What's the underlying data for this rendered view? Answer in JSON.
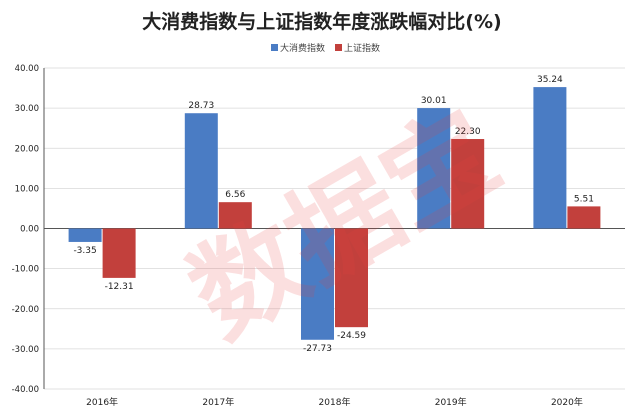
{
  "watermark": "数据宝",
  "chart_data": {
    "type": "bar",
    "title": "大消费指数与上证指数年度涨跌幅对比(%)",
    "categories": [
      "2016年",
      "2017年",
      "2018年",
      "2019年",
      "2020年"
    ],
    "series": [
      {
        "name": "大消费指数",
        "color": "#4a7cc4",
        "values": [
          -3.35,
          28.73,
          -27.73,
          30.01,
          35.24
        ]
      },
      {
        "name": "上证指数",
        "color": "#c2403c",
        "values": [
          -12.31,
          6.56,
          -24.59,
          22.3,
          5.51
        ]
      }
    ],
    "data_labels": [
      [
        "-3.35",
        "28.73",
        "-27.73",
        "30.01",
        "35.24"
      ],
      [
        "-12.31",
        "6.56",
        "-24.59",
        "22.30",
        "5.51"
      ]
    ],
    "yticks": [
      "40.00",
      "30.00",
      "20.00",
      "10.00",
      "0.00",
      "-10.00",
      "-20.00",
      "-30.00",
      "-40.00"
    ],
    "ylim": [
      -40,
      40
    ],
    "legend_position": "top-center",
    "grid": true,
    "xlabel": "",
    "ylabel": ""
  }
}
